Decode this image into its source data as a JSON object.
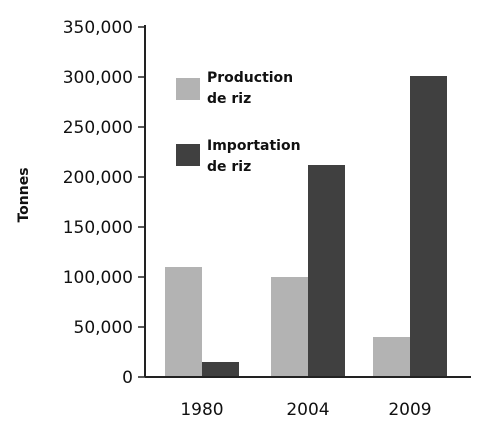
{
  "chart_data": {
    "type": "bar",
    "ylabel": "Tonnes",
    "xlabel": "",
    "categories": [
      "1980",
      "2004",
      "2009"
    ],
    "ylim": [
      0,
      350000
    ],
    "yticks": [
      0,
      50000,
      100000,
      150000,
      200000,
      250000,
      300000,
      350000
    ],
    "ytick_labels": [
      "0",
      "50,000",
      "100,000",
      "150,000",
      "200,000",
      "250,000",
      "300,000",
      "350,000"
    ],
    "grid": false,
    "legend_position": "top-left",
    "series": [
      {
        "name": "Production de riz",
        "legend_lines": [
          "Production",
          "de riz"
        ],
        "color": "#b3b3b3",
        "values": [
          110000,
          100000,
          40000
        ]
      },
      {
        "name": "Importation de riz",
        "legend_lines": [
          "Importation",
          "de riz"
        ],
        "color": "#404040",
        "values": [
          15000,
          212000,
          301000
        ]
      }
    ]
  }
}
